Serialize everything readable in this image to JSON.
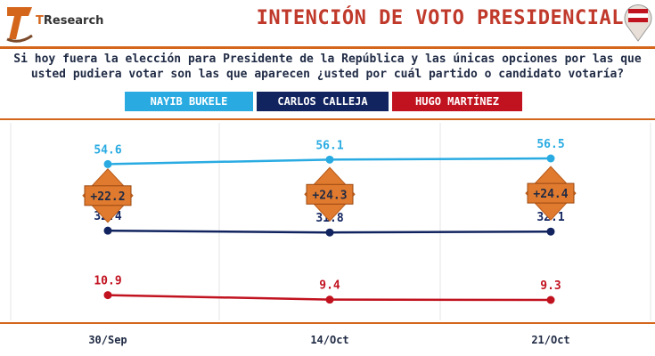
{
  "header": {
    "logo_text_t": "T",
    "logo_text_rest": "Research",
    "title": "INTENCIÓN DE VOTO PRESIDENCIAL"
  },
  "question": {
    "line1": "Si hoy fuera la elección para Presidente de la República y las únicas opciones por las que",
    "line2": "usted pudiera votar son las que aparecen ¿usted por cuál partido o candidato votaría?"
  },
  "legend": {
    "bukele": "NAYIB BUKELE",
    "calleja": "CARLOS CALLEJA",
    "martinez": "HUGO MARTÍNEZ"
  },
  "colors": {
    "bukele": "#29abe2",
    "calleja": "#12245f",
    "martinez": "#c1121f",
    "diff_box": "#e07a2e",
    "accent": "#d4661c"
  },
  "chart_data": {
    "type": "line",
    "categories": [
      "30/Sep",
      "14/Oct",
      "21/Oct"
    ],
    "series": [
      {
        "name": "NAYIB BUKELE",
        "values": [
          54.6,
          56.1,
          56.5
        ],
        "labels": [
          "54.6",
          "56.1",
          "56.5"
        ]
      },
      {
        "name": "CARLOS CALLEJA",
        "values": [
          32.4,
          31.8,
          32.1
        ],
        "labels": [
          "32.4",
          "31.8",
          "32.1"
        ]
      },
      {
        "name": "HUGO MARTÍNEZ",
        "values": [
          10.9,
          9.4,
          9.3
        ],
        "labels": [
          "10.9",
          "9.4",
          "9.3"
        ]
      }
    ],
    "annotations": [
      "+22.2",
      "+24.3",
      "+24.4"
    ],
    "ylim": [
      0,
      70
    ],
    "grid": "vertical"
  }
}
